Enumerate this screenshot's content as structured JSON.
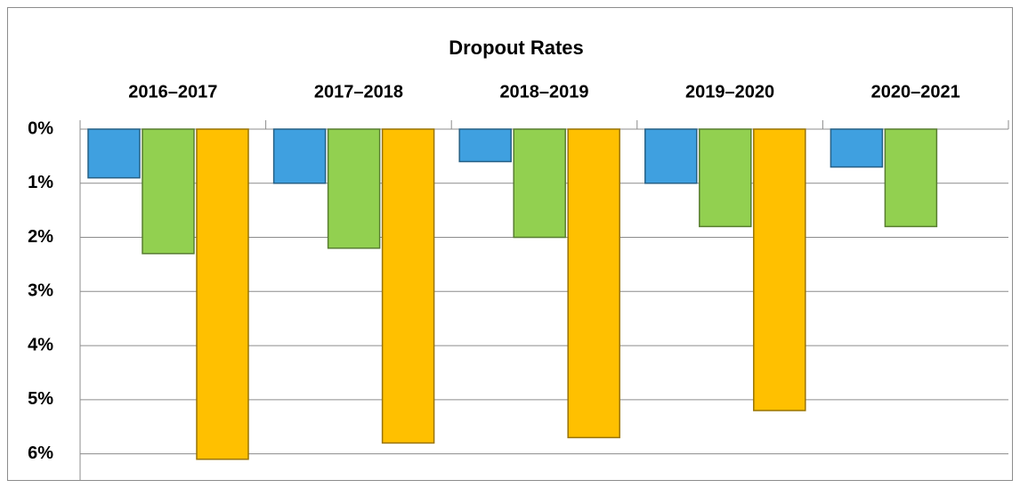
{
  "chart_data": {
    "type": "bar",
    "title": "Dropout Rates",
    "categories": [
      "2016–2017",
      "2017–2018",
      "2018–2019",
      "2019–2020",
      "2020–2021"
    ],
    "series": [
      {
        "color": "#3fa0e0",
        "values": [
          0.9,
          1.0,
          0.6,
          1.0,
          0.7
        ]
      },
      {
        "color": "#92d050",
        "values": [
          2.3,
          2.2,
          2.0,
          1.8,
          1.8
        ]
      },
      {
        "color": "#ffc000",
        "values": [
          6.1,
          5.8,
          5.7,
          5.2,
          null
        ]
      }
    ],
    "ylim": [
      0,
      6.5
    ],
    "inverted": true,
    "yticks": [
      {
        "value": 0,
        "label": "0%"
      },
      {
        "value": 1,
        "label": "1%"
      },
      {
        "value": 2,
        "label": "2%"
      },
      {
        "value": 3,
        "label": "3%"
      },
      {
        "value": 4,
        "label": "4%"
      },
      {
        "value": 5,
        "label": "5%"
      },
      {
        "value": 6,
        "label": "6%"
      }
    ],
    "grid": true
  }
}
